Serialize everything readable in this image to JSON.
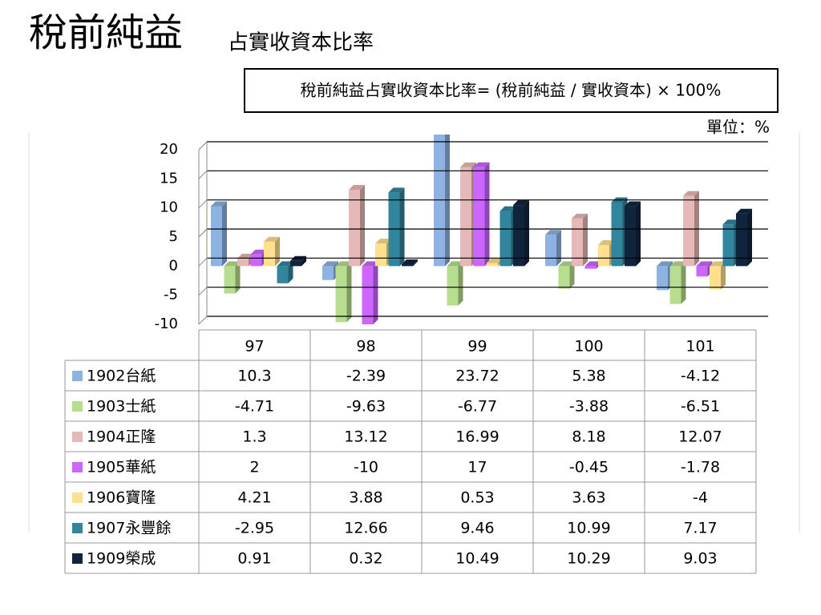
{
  "title": "稅前純益",
  "subtitle": "占實收資本比率",
  "formula": "稅前純益占實收資本比率= (稅前純益 / 實收資本) × 100%",
  "unit": "單位：%",
  "chart_data": {
    "type": "bar3d",
    "categories": [
      "97",
      "98",
      "99",
      "100",
      "101"
    ],
    "ylim": [
      -10,
      20
    ],
    "yticks": [
      -10,
      -5,
      0,
      5,
      10,
      15,
      20
    ],
    "grid": true,
    "series": [
      {
        "name": "1902台紙",
        "color": "#8db3e2",
        "values": [
          10.3,
          -2.39,
          23.72,
          5.38,
          -4.12
        ]
      },
      {
        "name": "1903士紙",
        "color": "#b7dd8f",
        "values": [
          -4.71,
          -9.63,
          -6.77,
          -3.88,
          -6.51
        ]
      },
      {
        "name": "1904正隆",
        "color": "#e6b9b8",
        "values": [
          1.3,
          13.12,
          16.99,
          8.18,
          12.07
        ]
      },
      {
        "name": "1905華紙",
        "color": "#cc66ff",
        "values": [
          2,
          -10,
          17,
          -0.45,
          -1.78
        ]
      },
      {
        "name": "1906寶隆",
        "color": "#ffe08f",
        "values": [
          4.21,
          3.88,
          0.53,
          3.63,
          -4
        ]
      },
      {
        "name": "1907永豐餘",
        "color": "#31859c",
        "values": [
          -2.95,
          12.66,
          9.46,
          10.99,
          7.17
        ]
      },
      {
        "name": "1909榮成",
        "color": "#10243e",
        "values": [
          0.91,
          0.32,
          10.49,
          10.29,
          9.03
        ]
      }
    ]
  }
}
